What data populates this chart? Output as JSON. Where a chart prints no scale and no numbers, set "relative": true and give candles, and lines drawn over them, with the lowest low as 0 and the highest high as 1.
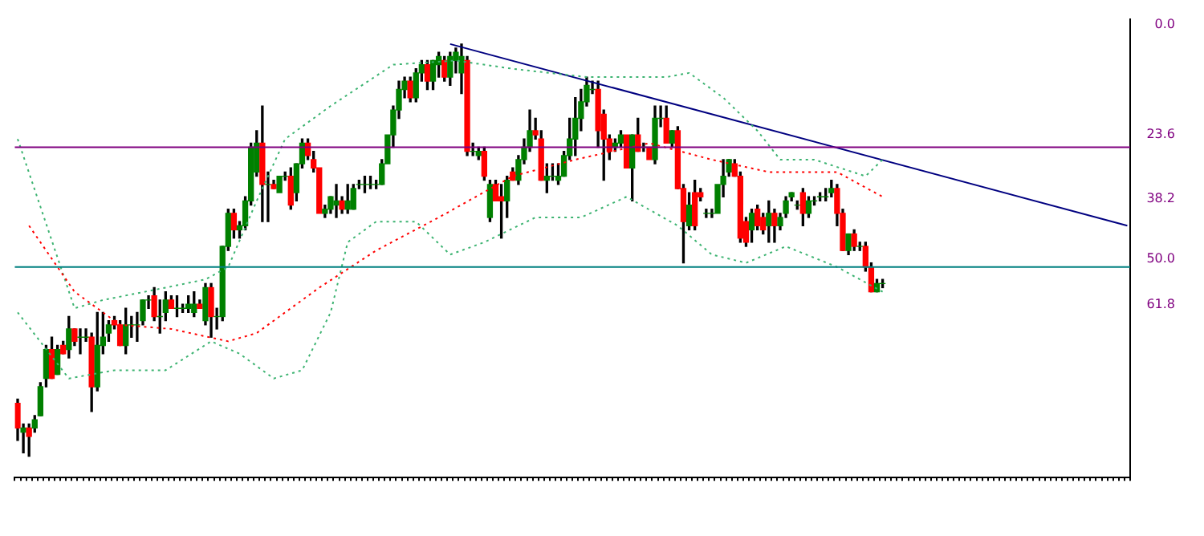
{
  "chart_data": {
    "type": "candlestick",
    "relative": true,
    "legend": false,
    "grid": false,
    "colors": [
      "#ff0000",
      "#008000",
      "#ff0000",
      "#008000",
      "#008000",
      "#008000",
      "#ff0000",
      "#008000",
      "#ff0000",
      "#008000",
      "#ff0000",
      "#008000",
      "#008000",
      "#ff0000",
      "#008000",
      "#008000",
      "#008000",
      "#ff0000",
      "#ff0000",
      "#008000",
      "#008000",
      "#008000",
      "#008000",
      "#008000",
      "#ff0000",
      "#008000",
      "#008000",
      "#ff0000",
      "#008000",
      "#008000",
      "#008000",
      "#008000",
      "#ff0000",
      "#008000",
      "#ff0000",
      "#008000",
      "#008000",
      "#008000",
      "#ff0000",
      "#008000",
      "#008000",
      "#008000",
      "#008000",
      "#ff0000",
      "#008000",
      "#ff0000",
      "#008000",
      "#008000",
      "#ff0000",
      "#008000",
      "#008000",
      "#ff0000",
      "#ff0000",
      "#ff0000",
      "#008000",
      "#008000",
      "#008000",
      "#ff0000",
      "#008000",
      "#008000",
      "#008000",
      "#008000",
      "#008000",
      "#008000",
      "#008000",
      "#008000",
      "#008000",
      "#008000",
      "#008000",
      "#ff0000",
      "#008000",
      "#008000",
      "#ff0000",
      "#008000",
      "#008000",
      "#ff0000",
      "#008000",
      "#008000",
      "#008000",
      "#ff0000",
      "#008000",
      "#008000",
      "#ff0000",
      "#008000",
      "#ff0000",
      "#ff0000",
      "#008000",
      "#ff0000",
      "#008000",
      "#008000",
      "#008000",
      "#ff0000",
      "#ff0000",
      "#008000",
      "#008000",
      "#008000",
      "#008000",
      "#008000",
      "#008000",
      "#008000",
      "#008000",
      "#008000",
      "#ff0000",
      "#ff0000",
      "#ff0000",
      "#008000",
      "#008000",
      "#ff0000",
      "#008000",
      "#ff0000",
      "#008000",
      "#ff0000",
      "#008000",
      "#008000",
      "#ff0000",
      "#008000",
      "#ff0000",
      "#ff0000",
      "#008000",
      "#ff0000",
      "#ff0000",
      "#008000",
      "#008000",
      "#008000",
      "#008000",
      "#008000",
      "#ff0000",
      "#ff0000",
      "#ff0000",
      "#008000",
      "#ff0000",
      "#ff0000",
      "#008000",
      "#ff0000",
      "#008000",
      "#008000",
      "#008000",
      "#008000",
      "#ff0000",
      "#008000",
      "#008000",
      "#008000",
      "#008000",
      "#008000",
      "#ff0000",
      "#ff0000",
      "#008000",
      "#ff0000",
      "#008000",
      "#ff0000",
      "#ff0000",
      "#008000",
      "#008000",
      null,
      null,
      null,
      null,
      null,
      null,
      null,
      null,
      null,
      null,
      null,
      null,
      null,
      null,
      null,
      null,
      null,
      null,
      null,
      null,
      null,
      null,
      null,
      null,
      null,
      null,
      null,
      null,
      null,
      null,
      null,
      null,
      null,
      null,
      null,
      null,
      null,
      null,
      null,
      null,
      null,
      null,
      null
    ],
    "categories": [
      null,
      null,
      null,
      null,
      null,
      null,
      null,
      null,
      null,
      null,
      null,
      null,
      null,
      null,
      null,
      null,
      null,
      null,
      null,
      null,
      null,
      null,
      null,
      null,
      null,
      null,
      null,
      null,
      null,
      null,
      null,
      null,
      null,
      null,
      null,
      null,
      null,
      null,
      null,
      null,
      null,
      null,
      null,
      null,
      null,
      null,
      null,
      null,
      null,
      null,
      null,
      null,
      null,
      null,
      null,
      null,
      null,
      null,
      null,
      null,
      null,
      null,
      null,
      null,
      null,
      null,
      null,
      null,
      null,
      null,
      null,
      null,
      null,
      null,
      null,
      null,
      null,
      null,
      null,
      null,
      null,
      null,
      null,
      null,
      null,
      null,
      null,
      null,
      null,
      null,
      null,
      null,
      null,
      null,
      null,
      null,
      null,
      null,
      null,
      null,
      null,
      null,
      null,
      null,
      null,
      null,
      null,
      null,
      null,
      null,
      null,
      null,
      null,
      null,
      null,
      null,
      null,
      null,
      null,
      null,
      null,
      null,
      null,
      null,
      null,
      null,
      null,
      null,
      null,
      null,
      null,
      null,
      null,
      null,
      null,
      null,
      null,
      null,
      null,
      null,
      null,
      null,
      null,
      null,
      null,
      null,
      null,
      null,
      null,
      null,
      null,
      null,
      null,
      null,
      null,
      null,
      null,
      null,
      null,
      null,
      null,
      null,
      null,
      null,
      null,
      null,
      null,
      null,
      null,
      null,
      null,
      null,
      null,
      null,
      null,
      null,
      null,
      null,
      null,
      null,
      null,
      null,
      null,
      null,
      null,
      null,
      null,
      null,
      null,
      null,
      null,
      null,
      null,
      null,
      null,
      null
    ],
    "ohlc": [
      [
        0.13,
        0.14,
        0.04,
        0.07
      ],
      [
        0.06,
        0.08,
        0.01,
        0.07
      ],
      [
        0.07,
        0.08,
        0.0,
        0.05
      ],
      [
        0.07,
        0.1,
        0.06,
        0.09
      ],
      [
        0.1,
        0.18,
        0.1,
        0.17
      ],
      [
        0.19,
        0.27,
        0.17,
        0.26
      ],
      [
        0.26,
        0.29,
        0.19,
        0.19
      ],
      [
        0.2,
        0.27,
        0.2,
        0.26
      ],
      [
        0.27,
        0.28,
        0.25,
        0.25
      ],
      [
        0.26,
        0.34,
        0.24,
        0.31
      ],
      [
        0.31,
        0.31,
        0.27,
        0.28
      ],
      [
        0.29,
        0.31,
        0.25,
        0.29
      ],
      [
        0.29,
        0.31,
        0.28,
        0.29
      ],
      [
        0.29,
        0.3,
        0.11,
        0.17
      ],
      [
        0.17,
        0.35,
        0.16,
        0.27
      ],
      [
        0.27,
        0.35,
        0.25,
        0.29
      ],
      [
        0.3,
        0.33,
        0.28,
        0.32
      ],
      [
        0.33,
        0.34,
        0.31,
        0.32
      ],
      [
        0.32,
        0.33,
        0.27,
        0.27
      ],
      [
        0.27,
        0.36,
        0.25,
        0.32
      ],
      [
        0.32,
        0.34,
        0.29,
        0.32
      ],
      [
        0.32,
        0.35,
        0.28,
        0.32
      ],
      [
        0.33,
        0.38,
        0.32,
        0.38
      ],
      [
        0.38,
        0.39,
        0.36,
        0.38
      ],
      [
        0.39,
        0.41,
        0.33,
        0.34
      ],
      [
        0.34,
        0.38,
        0.3,
        0.34
      ],
      [
        0.35,
        0.4,
        0.33,
        0.38
      ],
      [
        0.38,
        0.39,
        0.36,
        0.36
      ],
      [
        0.36,
        0.39,
        0.34,
        0.36
      ],
      [
        0.36,
        0.37,
        0.35,
        0.36
      ],
      [
        0.36,
        0.39,
        0.35,
        0.37
      ],
      [
        0.35,
        0.4,
        0.34,
        0.37
      ],
      [
        0.37,
        0.38,
        0.36,
        0.36
      ],
      [
        0.33,
        0.42,
        0.32,
        0.41
      ],
      [
        0.41,
        0.42,
        0.29,
        0.34
      ],
      [
        0.34,
        0.36,
        0.31,
        0.34
      ],
      [
        0.34,
        0.51,
        0.33,
        0.51
      ],
      [
        0.51,
        0.6,
        0.5,
        0.59
      ],
      [
        0.59,
        0.6,
        0.53,
        0.55
      ],
      [
        0.55,
        0.57,
        0.53,
        0.56
      ],
      [
        0.56,
        0.63,
        0.55,
        0.62
      ],
      [
        0.62,
        0.76,
        0.61,
        0.75
      ],
      [
        0.69,
        0.79,
        0.68,
        0.76
      ],
      [
        0.76,
        0.85,
        0.57,
        0.66
      ],
      [
        0.66,
        0.69,
        0.57,
        0.66
      ],
      [
        0.66,
        0.67,
        0.65,
        0.65
      ],
      [
        0.64,
        0.68,
        0.64,
        0.68
      ],
      [
        0.68,
        0.69,
        0.67,
        0.68
      ],
      [
        0.68,
        0.7,
        0.6,
        0.61
      ],
      [
        0.64,
        0.71,
        0.62,
        0.71
      ],
      [
        0.71,
        0.77,
        0.7,
        0.76
      ],
      [
        0.76,
        0.77,
        0.72,
        0.73
      ],
      [
        0.72,
        0.74,
        0.69,
        0.7
      ],
      [
        0.7,
        0.7,
        0.59,
        0.59
      ],
      [
        0.59,
        0.61,
        0.58,
        0.6
      ],
      [
        0.6,
        0.63,
        0.59,
        0.63
      ],
      [
        0.61,
        0.66,
        0.58,
        0.62
      ],
      [
        0.62,
        0.63,
        0.59,
        0.6
      ],
      [
        0.6,
        0.66,
        0.59,
        0.62
      ],
      [
        0.6,
        0.66,
        0.6,
        0.65
      ],
      [
        0.66,
        0.67,
        0.65,
        0.66
      ],
      [
        0.66,
        0.68,
        0.64,
        0.66
      ],
      [
        0.66,
        0.68,
        0.65,
        0.66
      ],
      [
        0.66,
        0.67,
        0.65,
        0.66
      ],
      [
        0.66,
        0.72,
        0.66,
        0.71
      ],
      [
        0.71,
        0.78,
        0.71,
        0.78
      ],
      [
        0.78,
        0.85,
        0.75,
        0.84
      ],
      [
        0.84,
        0.91,
        0.82,
        0.89
      ],
      [
        0.89,
        0.92,
        0.87,
        0.91
      ],
      [
        0.91,
        0.92,
        0.86,
        0.87
      ],
      [
        0.87,
        0.94,
        0.86,
        0.93
      ],
      [
        0.93,
        0.96,
        0.91,
        0.95
      ],
      [
        0.95,
        0.96,
        0.89,
        0.91
      ],
      [
        0.91,
        0.96,
        0.89,
        0.96
      ],
      [
        0.95,
        0.98,
        0.92,
        0.97
      ],
      [
        0.96,
        0.97,
        0.91,
        0.92
      ],
      [
        0.92,
        0.98,
        0.9,
        0.97
      ],
      [
        0.96,
        0.99,
        0.93,
        0.98
      ],
      [
        0.93,
        1.0,
        0.88,
        0.97
      ],
      [
        0.96,
        0.97,
        0.73,
        0.74
      ],
      [
        0.74,
        0.76,
        0.73,
        0.74
      ],
      [
        0.73,
        0.75,
        0.72,
        0.74
      ],
      [
        0.74,
        0.75,
        0.67,
        0.68
      ],
      [
        0.58,
        0.67,
        0.57,
        0.66
      ],
      [
        0.66,
        0.67,
        0.62,
        0.62
      ],
      [
        0.63,
        0.66,
        0.53,
        0.62
      ],
      [
        0.62,
        0.68,
        0.58,
        0.67
      ],
      [
        0.69,
        0.7,
        0.67,
        0.67
      ],
      [
        0.67,
        0.73,
        0.66,
        0.72
      ],
      [
        0.72,
        0.77,
        0.71,
        0.75
      ],
      [
        0.75,
        0.84,
        0.74,
        0.79
      ],
      [
        0.79,
        0.82,
        0.77,
        0.78
      ],
      [
        0.77,
        0.79,
        0.67,
        0.67
      ],
      [
        0.67,
        0.71,
        0.64,
        0.68
      ],
      [
        0.68,
        0.71,
        0.67,
        0.68
      ],
      [
        0.67,
        0.71,
        0.66,
        0.68
      ],
      [
        0.68,
        0.74,
        0.68,
        0.73
      ],
      [
        0.73,
        0.82,
        0.72,
        0.77
      ],
      [
        0.77,
        0.87,
        0.73,
        0.82
      ],
      [
        0.82,
        0.89,
        0.79,
        0.86
      ],
      [
        0.86,
        0.92,
        0.85,
        0.9
      ],
      [
        0.89,
        0.91,
        0.88,
        0.89
      ],
      [
        0.89,
        0.91,
        0.75,
        0.79
      ],
      [
        0.83,
        0.84,
        0.67,
        0.77
      ],
      [
        0.77,
        0.78,
        0.72,
        0.74
      ],
      [
        0.75,
        0.77,
        0.74,
        0.76
      ],
      [
        0.76,
        0.79,
        0.75,
        0.78
      ],
      [
        0.78,
        0.78,
        0.7,
        0.7
      ],
      [
        0.7,
        0.78,
        0.62,
        0.78
      ],
      [
        0.78,
        0.82,
        0.74,
        0.74
      ],
      [
        0.75,
        0.76,
        0.74,
        0.75
      ],
      [
        0.75,
        0.75,
        0.72,
        0.72
      ],
      [
        0.72,
        0.85,
        0.71,
        0.82
      ],
      [
        0.82,
        0.85,
        0.8,
        0.82
      ],
      [
        0.82,
        0.85,
        0.76,
        0.76
      ],
      [
        0.76,
        0.79,
        0.75,
        0.79
      ],
      [
        0.79,
        0.8,
        0.65,
        0.65
      ],
      [
        0.65,
        0.66,
        0.47,
        0.57
      ],
      [
        0.56,
        0.64,
        0.55,
        0.61
      ],
      [
        0.64,
        0.67,
        0.55,
        0.56
      ],
      [
        0.64,
        0.65,
        0.62,
        0.63
      ],
      [
        0.59,
        0.6,
        0.58,
        0.59
      ],
      [
        0.59,
        0.6,
        0.58,
        0.59
      ],
      [
        0.59,
        0.66,
        0.59,
        0.66
      ],
      [
        0.66,
        0.72,
        0.63,
        0.68
      ],
      [
        0.69,
        0.72,
        0.68,
        0.72
      ],
      [
        0.71,
        0.72,
        0.68,
        0.68
      ],
      [
        0.68,
        0.69,
        0.52,
        0.53
      ],
      [
        0.57,
        0.58,
        0.51,
        0.52
      ],
      [
        0.55,
        0.6,
        0.52,
        0.59
      ],
      [
        0.6,
        0.61,
        0.55,
        0.56
      ],
      [
        0.58,
        0.59,
        0.54,
        0.55
      ],
      [
        0.56,
        0.62,
        0.52,
        0.59
      ],
      [
        0.59,
        0.6,
        0.52,
        0.56
      ],
      [
        0.56,
        0.59,
        0.55,
        0.58
      ],
      [
        0.59,
        0.63,
        0.58,
        0.62
      ],
      [
        0.63,
        0.64,
        0.62,
        0.64
      ],
      [
        0.61,
        0.62,
        0.6,
        0.61
      ],
      [
        0.64,
        0.65,
        0.56,
        0.59
      ],
      [
        0.59,
        0.63,
        0.58,
        0.62
      ],
      [
        0.62,
        0.63,
        0.61,
        0.62
      ],
      [
        0.63,
        0.64,
        0.62,
        0.63
      ],
      [
        0.63,
        0.65,
        0.62,
        0.63
      ],
      [
        0.64,
        0.67,
        0.63,
        0.65
      ],
      [
        0.65,
        0.66,
        0.56,
        0.59
      ],
      [
        0.59,
        0.6,
        0.5,
        0.5
      ],
      [
        0.5,
        0.54,
        0.49,
        0.54
      ],
      [
        0.54,
        0.55,
        0.5,
        0.51
      ],
      [
        0.51,
        0.52,
        0.5,
        0.51
      ],
      [
        0.51,
        0.52,
        0.45,
        0.46
      ],
      [
        0.46,
        0.47,
        0.4,
        0.4
      ],
      [
        0.4,
        0.43,
        0.4,
        0.42
      ],
      [
        0.42,
        0.43,
        0.41,
        0.42
      ],
      null,
      null,
      null,
      null,
      null,
      null,
      null,
      null,
      null,
      null,
      null,
      null,
      null,
      null,
      null,
      null,
      null,
      null,
      null,
      null,
      null,
      null,
      null,
      null,
      null,
      null,
      null,
      null,
      null,
      null,
      null,
      null,
      null,
      null,
      null,
      null,
      null,
      null,
      null,
      null,
      null,
      null,
      null
    ],
    "series": [
      {
        "type": "line",
        "color": "#ff0000",
        "line_style": "dotted",
        "values": [
          null,
          null,
          0.56,
          null,
          null,
          null,
          null,
          null,
          null,
          null,
          0.4,
          null,
          null,
          null,
          null,
          null,
          null,
          null,
          0.32,
          null,
          null,
          null,
          null,
          null,
          null,
          null,
          null,
          0.31,
          null,
          null,
          null,
          null,
          null,
          null,
          null,
          null,
          null,
          0.28,
          null,
          null,
          null,
          null,
          0.3,
          null,
          null,
          null,
          null,
          null,
          null,
          null,
          null,
          null,
          null,
          0.41,
          null,
          null,
          null,
          null,
          null,
          null,
          null,
          null,
          null,
          0.5,
          null,
          null,
          null,
          null,
          null,
          null,
          null,
          null,
          null,
          null,
          0.58,
          null,
          null,
          null,
          null,
          null,
          null,
          null,
          null,
          null,
          null,
          null,
          null,
          0.68,
          null,
          null,
          null,
          null,
          null,
          null,
          null,
          null,
          null,
          null,
          0.72,
          null,
          null,
          null,
          null,
          null,
          null,
          null,
          null,
          null,
          null,
          null,
          null,
          0.76,
          null,
          null,
          null,
          null,
          null,
          null,
          null,
          null,
          null,
          null,
          0.72,
          null,
          null,
          null,
          null,
          null,
          null,
          null,
          null,
          null,
          0.69,
          null,
          null,
          null,
          null,
          null,
          null,
          null,
          null,
          null,
          null,
          null,
          0.69,
          null,
          null,
          null,
          null,
          null,
          null,
          null,
          0.63,
          null,
          null,
          null,
          null,
          null,
          null,
          null,
          null,
          null,
          null,
          null,
          null,
          null,
          null,
          null,
          null,
          null,
          null,
          null,
          null,
          null,
          null,
          null,
          null,
          null,
          null,
          null,
          null,
          null,
          null,
          null,
          null,
          null,
          null,
          null,
          null,
          null,
          null,
          null,
          null,
          null,
          null,
          null
        ]
      },
      {
        "type": "line",
        "color": "#3cb371",
        "line_style": "dotted",
        "values": [
          0.77,
          null,
          null,
          null,
          null,
          null,
          null,
          null,
          null,
          null,
          0.36,
          null,
          null,
          null,
          null,
          0.38,
          null,
          null,
          null,
          null,
          null,
          null,
          null,
          null,
          null,
          null,
          0.41,
          null,
          null,
          null,
          null,
          null,
          null,
          0.43,
          null,
          null,
          null,
          0.46,
          null,
          null,
          null,
          null,
          0.62,
          null,
          null,
          null,
          null,
          0.77,
          null,
          null,
          null,
          null,
          null,
          null,
          null,
          0.85,
          null,
          null,
          null,
          null,
          null,
          null,
          null,
          null,
          null,
          null,
          0.95,
          null,
          null,
          null,
          null,
          null,
          null,
          null,
          null,
          null,
          null,
          0.96,
          null,
          null,
          null,
          null,
          null,
          null,
          null,
          null,
          null,
          0.94,
          null,
          null,
          null,
          null,
          null,
          null,
          null,
          null,
          null,
          null,
          null,
          null,
          0.92,
          null,
          null,
          null,
          null,
          null,
          null,
          null,
          null,
          null,
          null,
          null,
          null,
          null,
          0.92,
          null,
          null,
          null,
          0.93,
          null,
          null,
          null,
          null,
          null,
          0.87,
          null,
          null,
          null,
          null,
          null,
          0.79,
          null,
          null,
          null,
          0.72,
          null,
          null,
          null,
          null,
          null,
          0.72,
          null,
          null,
          null,
          null,
          null,
          null,
          null,
          null,
          0.68,
          null,
          null,
          0.72,
          null,
          null,
          null,
          null,
          null,
          null,
          null,
          null,
          null,
          null,
          null,
          null,
          null,
          null,
          null,
          null,
          null,
          null,
          null,
          null,
          null,
          null,
          null,
          null,
          null,
          null,
          null,
          null,
          null,
          null,
          null,
          null,
          null,
          null,
          null,
          null,
          null,
          null,
          null,
          null,
          null,
          null,
          null
        ]
      },
      {
        "type": "line",
        "color": "#3cb371",
        "line_style": "dotted",
        "values": [
          0.35,
          null,
          null,
          null,
          null,
          null,
          null,
          null,
          null,
          0.19,
          null,
          null,
          null,
          null,
          null,
          null,
          null,
          0.21,
          null,
          null,
          null,
          null,
          null,
          null,
          null,
          null,
          0.21,
          null,
          null,
          null,
          null,
          null,
          null,
          null,
          0.28,
          null,
          null,
          null,
          null,
          0.25,
          null,
          null,
          null,
          null,
          null,
          0.19,
          null,
          null,
          null,
          null,
          0.21,
          null,
          null,
          null,
          null,
          0.35,
          null,
          null,
          0.52,
          null,
          null,
          null,
          null,
          0.57,
          null,
          null,
          null,
          null,
          null,
          null,
          0.57,
          null,
          null,
          null,
          null,
          null,
          0.49,
          null,
          null,
          null,
          null,
          null,
          0.52,
          null,
          null,
          null,
          null,
          null,
          null,
          null,
          null,
          0.58,
          null,
          null,
          null,
          null,
          null,
          null,
          null,
          0.58,
          null,
          null,
          null,
          null,
          null,
          null,
          null,
          0.63,
          null,
          null,
          null,
          null,
          null,
          null,
          null,
          null,
          0.56,
          null,
          null,
          null,
          null,
          null,
          0.49,
          null,
          null,
          null,
          null,
          null,
          0.47,
          null,
          null,
          null,
          null,
          null,
          null,
          0.51,
          null,
          null,
          null,
          null,
          null,
          null,
          null,
          null,
          0.46,
          null,
          null,
          null,
          null,
          null,
          null,
          null,
          0.4,
          null,
          null,
          null,
          null,
          null,
          null,
          null,
          null,
          null,
          null,
          null,
          null,
          null,
          null,
          null,
          null,
          null,
          null,
          null,
          null,
          null,
          null,
          null,
          null,
          null,
          null,
          null,
          null,
          null,
          null,
          null,
          null,
          null,
          null,
          null,
          null,
          null,
          null,
          null,
          null,
          null,
          null,
          null
        ]
      },
      {
        "type": "line",
        "color": "#000080",
        "line_style": "solid",
        "values": [
          null,
          null,
          null,
          null,
          null,
          null,
          null,
          null,
          null,
          null,
          null,
          null,
          null,
          null,
          null,
          null,
          null,
          null,
          null,
          null,
          null,
          null,
          null,
          null,
          null,
          null,
          null,
          null,
          null,
          null,
          null,
          null,
          null,
          null,
          null,
          null,
          null,
          null,
          null,
          null,
          null,
          null,
          null,
          null,
          null,
          null,
          null,
          null,
          null,
          null,
          null,
          null,
          null,
          null,
          null,
          null,
          null,
          null,
          null,
          null,
          null,
          null,
          null,
          null,
          null,
          null,
          null,
          null,
          null,
          null,
          null,
          null,
          null,
          null,
          null,
          null,
          1.0,
          null,
          null,
          null,
          null,
          null,
          null,
          null,
          null,
          null,
          null,
          null,
          null,
          null,
          null,
          null,
          null,
          null,
          null,
          null,
          null,
          null,
          null,
          null,
          null,
          null,
          null,
          null,
          null,
          null,
          null,
          null,
          null,
          null,
          null,
          null,
          null,
          null,
          null,
          null,
          null,
          null,
          null,
          null,
          null,
          null,
          null,
          null,
          null,
          null,
          null,
          null,
          null,
          null,
          null,
          null,
          null,
          null,
          null,
          null,
          null,
          null,
          null,
          null,
          null,
          null,
          null,
          null,
          null,
          null,
          null,
          null,
          null,
          null,
          null,
          null,
          null,
          null,
          null,
          null,
          null,
          null,
          null,
          null,
          null,
          null,
          null,
          null,
          null,
          null,
          null,
          null,
          null,
          null,
          null,
          null,
          null,
          null,
          null,
          null,
          null,
          null,
          null,
          null,
          null,
          null,
          null,
          null,
          null,
          null,
          null,
          null,
          null,
          null,
          null,
          null,
          null,
          null,
          null,
          0.56
        ]
      }
    ],
    "ref_lines": [
      {
        "axis": "y",
        "value": 0.75,
        "color": "#800080"
      },
      {
        "axis": "y",
        "value": 0.46,
        "color": "#008080"
      }
    ],
    "annotations": [
      "0.0",
      "23.6",
      "38.2",
      "50.0",
      "61.8"
    ]
  }
}
